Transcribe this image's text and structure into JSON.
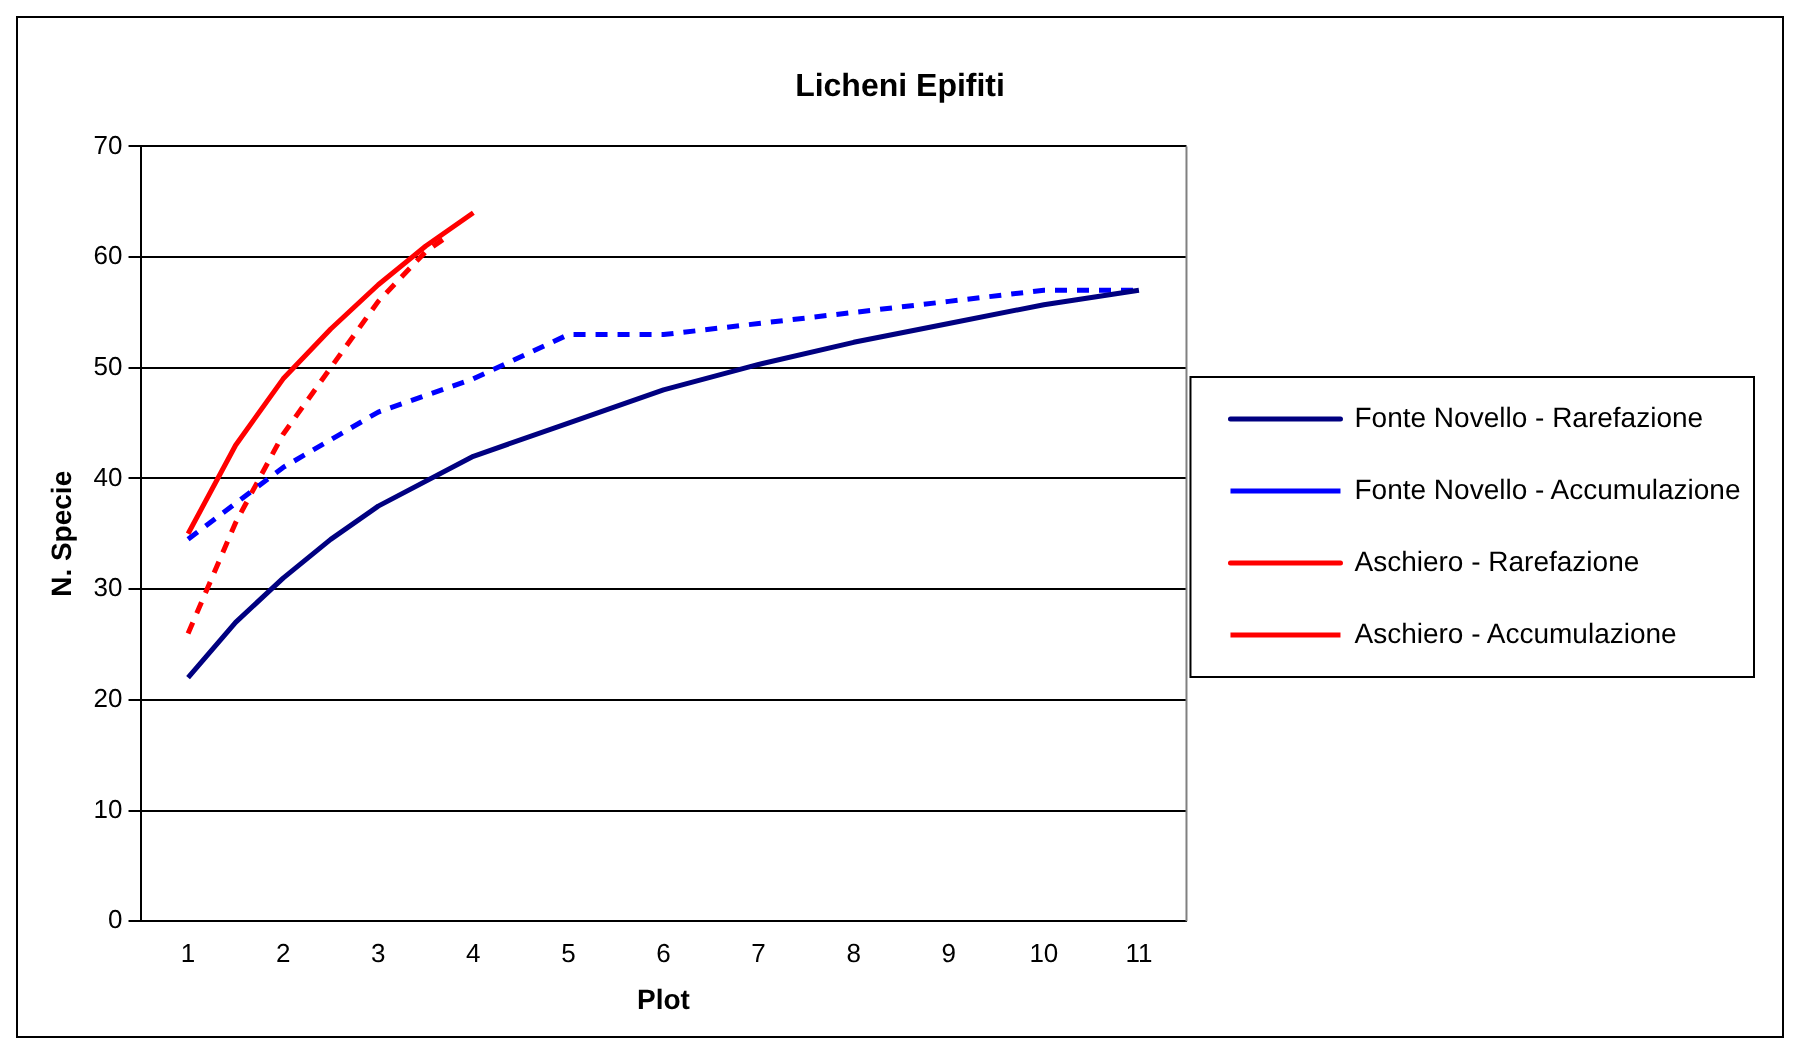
{
  "chart_data": {
    "type": "line",
    "title": "Licheni Epifiti",
    "xlabel": "Plot",
    "ylabel": "N. Specie",
    "xlim": [
      0.5,
      11.5
    ],
    "xticks": [
      1,
      2,
      3,
      4,
      5,
      6,
      7,
      8,
      9,
      10,
      11
    ],
    "ylim": [
      0,
      70
    ],
    "yticks": [
      0,
      10,
      20,
      30,
      40,
      50,
      60,
      70
    ],
    "grid": "y",
    "legend": "right",
    "marker": "none",
    "series": [
      {
        "name": "Fonte Novello - Rarefazione",
        "color": "#000080",
        "line_style": "solid",
        "x": [
          1,
          1.5,
          2,
          2.5,
          3,
          4,
          5,
          6,
          7,
          8,
          9,
          10,
          11
        ],
        "values": [
          22,
          27,
          31,
          34.5,
          37.5,
          42,
          45,
          48,
          50.3,
          52.3,
          54,
          55.7,
          57
        ]
      },
      {
        "name": "Fonte Novello - Accumulazione",
        "color": "#0000ff",
        "line_style": "dashed",
        "x": [
          1,
          2,
          3,
          4,
          5,
          6,
          7,
          8,
          9,
          10,
          11
        ],
        "values": [
          34.5,
          41,
          46,
          49,
          53,
          53,
          54,
          55,
          56,
          57,
          57
        ]
      },
      {
        "name": "Aschiero - Rarefazione",
        "color": "#ff0000",
        "line_style": "solid",
        "x": [
          1,
          1.5,
          2,
          2.5,
          3,
          3.5,
          4
        ],
        "values": [
          35,
          43,
          49,
          53.5,
          57.5,
          61,
          64
        ]
      },
      {
        "name": "Aschiero - Accumulazione",
        "color": "#ff0000",
        "line_style": "dashed",
        "x": [
          1,
          1.5,
          2,
          2.5,
          3,
          3.5,
          3.75
        ],
        "values": [
          26,
          36,
          44,
          50,
          56,
          60.5,
          62
        ]
      }
    ]
  }
}
